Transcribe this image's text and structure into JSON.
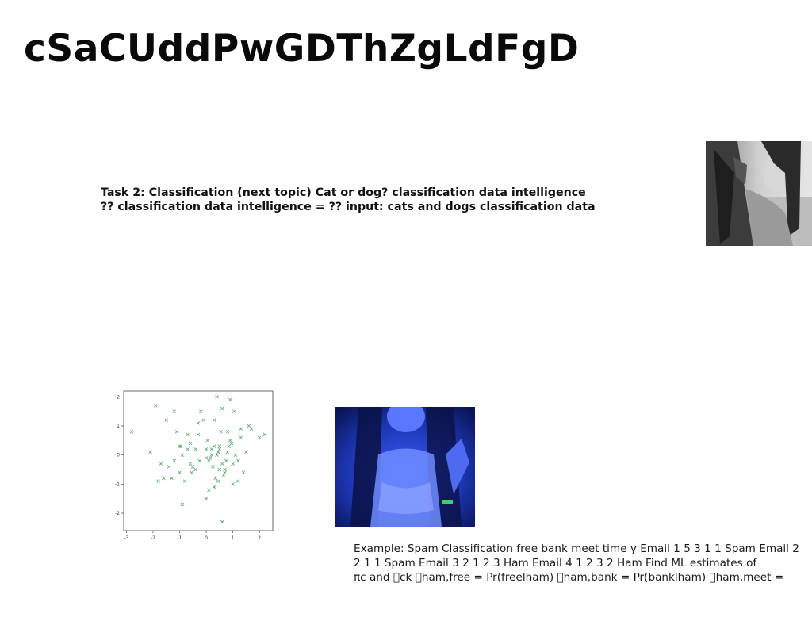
{
  "slide": {
    "title": "cSaCUddPwGDThZgLdFgD",
    "task_lines": [
      "Task 2: Classification (next topic) Cat or dog? classification data intelligence",
      "?? classification data intelligence = ?? input: cats and dogs classification data"
    ],
    "example_lines": [
      "Example: Spam Classification free bank meet time y Email 1 5 3 1 1 Spam Email 2",
      "2 1 1 Spam Email 3 2 1 2 3 Ham Email 4 1 2 3 2 Ham Find ML estimates of",
      "πc and \u0000ck \u0000ham,free = Pr(freelham) \u0000ham,bank = Pr(banklham) \u0000ham,meet ="
    ]
  },
  "chart_data": {
    "type": "scatter",
    "title": "",
    "xlabel": "",
    "ylabel": "",
    "xlim": [
      -3.1,
      2.5
    ],
    "ylim": [
      -2.6,
      2.2
    ],
    "xticks": [
      "-3",
      "-2",
      "-1",
      "0",
      "1",
      "2"
    ],
    "yticks": [
      "2",
      "1",
      "0",
      "-1",
      "-2"
    ],
    "grid": false,
    "marker": "x",
    "color": "#3f9a5a",
    "x": [
      -2.8,
      -1.9,
      -1.5,
      -1.2,
      -1.0,
      -0.9,
      -0.7,
      -0.5,
      -0.3,
      -0.2,
      0.0,
      0.1,
      0.2,
      0.3,
      0.4,
      0.5,
      0.6,
      0.7,
      0.8,
      0.9,
      1.0,
      1.1,
      1.3,
      1.5,
      1.7,
      2.0,
      2.2,
      -2.1,
      -1.7,
      -1.3,
      -1.1,
      -0.8,
      -0.6,
      -0.4,
      -0.1,
      0.05,
      0.25,
      0.45,
      0.55,
      0.65,
      0.85,
      1.05,
      1.2,
      1.4,
      1.6,
      -1.6,
      -1.4,
      -0.95,
      -0.55,
      -0.25,
      0.15,
      0.35,
      0.5,
      0.75,
      0.95,
      -1.8,
      -1.2,
      -0.7,
      -0.3,
      0.0,
      0.3,
      0.6,
      0.9,
      1.2,
      -0.9,
      0.1,
      0.4,
      0.7,
      -0.6,
      0.2,
      0.5,
      0.8,
      1.0,
      -0.4,
      0.6,
      0.0,
      0.3,
      -1.0,
      0.45,
      1.3
    ],
    "y": [
      0.8,
      1.7,
      1.2,
      1.5,
      0.3,
      0.0,
      0.7,
      -0.4,
      1.1,
      1.5,
      0.2,
      -0.2,
      0.0,
      1.2,
      2.0,
      0.3,
      1.6,
      -0.5,
      0.8,
      1.9,
      -0.3,
      0.0,
      0.6,
      0.1,
      0.9,
      0.6,
      0.7,
      0.1,
      -0.3,
      -0.8,
      0.8,
      -0.9,
      0.4,
      0.2,
      1.2,
      0.5,
      -0.4,
      0.1,
      0.8,
      -0.7,
      0.3,
      1.5,
      -0.9,
      -0.6,
      1.0,
      -0.8,
      -0.4,
      0.3,
      -0.6,
      -0.2,
      -0.1,
      -0.8,
      0.2,
      -0.2,
      0.4,
      -0.9,
      -0.2,
      0.2,
      0.7,
      -0.1,
      -1.1,
      -0.3,
      0.5,
      -0.2,
      -1.7,
      -1.2,
      0.0,
      -0.6,
      -0.3,
      0.2,
      -0.5,
      0.1,
      -1.0,
      -0.5,
      -2.3,
      -1.5,
      0.3,
      -0.6,
      -0.9,
      0.9
    ]
  }
}
